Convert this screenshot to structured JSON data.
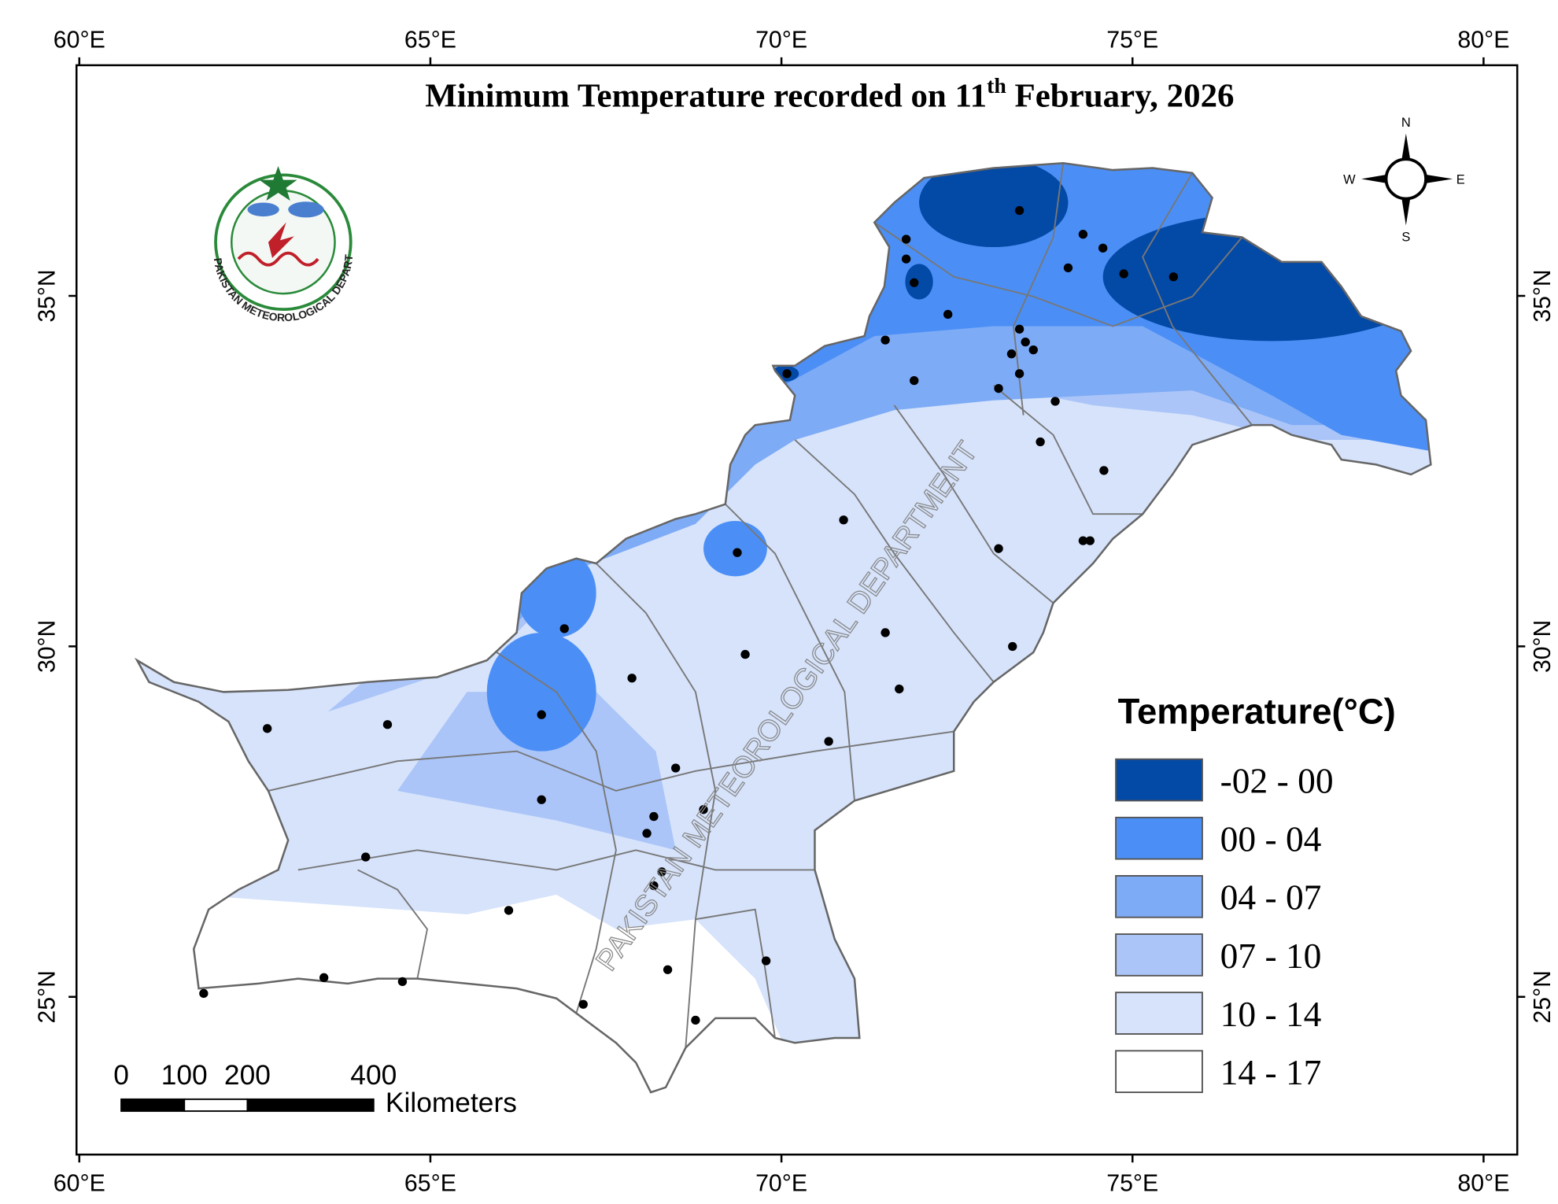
{
  "map": {
    "title": {
      "main": "Minimum Temperature  recorded on 11",
      "superscript": "th",
      "rest": " February, 2026"
    },
    "xlim": [
      59.96,
      80.48
    ],
    "ylim": [
      22.75,
      38.29
    ],
    "xticks": [
      {
        "value": 60,
        "label": "60°E"
      },
      {
        "value": 65,
        "label": "65°E"
      },
      {
        "value": 70,
        "label": "70°E"
      },
      {
        "value": 75,
        "label": "75°E"
      },
      {
        "value": 80,
        "label": "80°E"
      }
    ],
    "yticks": [
      {
        "value": 25,
        "label": "25°N"
      },
      {
        "value": 30,
        "label": "30°N"
      },
      {
        "value": 35,
        "label": "35°N"
      }
    ],
    "legend": {
      "title": "Temperature(°C)",
      "items": [
        {
          "label": "-02 - 00",
          "color": "#0349a6"
        },
        {
          "label": "00 - 04",
          "color": "#4b8ff6"
        },
        {
          "label": "04 - 07",
          "color": "#7eabf6"
        },
        {
          "label": "07 - 10",
          "color": "#abc5f8"
        },
        {
          "label": "10 - 14",
          "color": "#d6e3fb"
        },
        {
          "label": "14 - 17",
          "color": "#ffffff"
        }
      ]
    },
    "scale_bar": {
      "ticks": [
        0,
        100,
        200,
        400
      ],
      "unit": "Kilometers"
    },
    "compass": {
      "north": "N",
      "east": "E",
      "south": "S",
      "west": "W"
    },
    "watermark": "PAKISTAN METEOROLOGICAL DEPARTMENT",
    "logo_text": "PAKISTAN METEOROLOGICAL DEPARTMENT"
  }
}
